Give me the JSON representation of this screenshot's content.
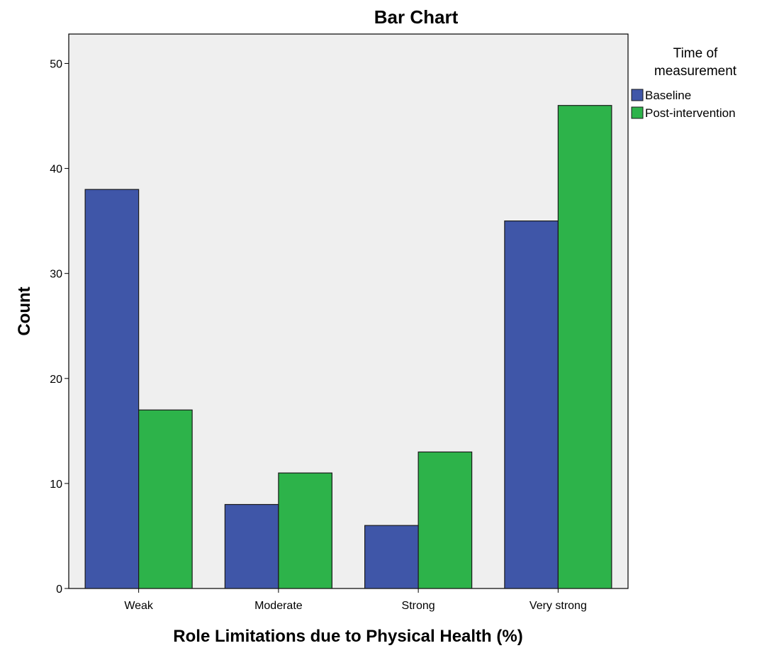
{
  "chart_data": {
    "type": "bar",
    "title": "Bar Chart",
    "xlabel": "Role Limitations due to Physical Health (%)",
    "ylabel": "Count",
    "categories": [
      "Weak",
      "Moderate",
      "Strong",
      "Very strong"
    ],
    "series": [
      {
        "name": "Baseline",
        "values": [
          38,
          8,
          6,
          35
        ],
        "color": "#3f56a8"
      },
      {
        "name": "Post-intervention",
        "values": [
          17,
          11,
          13,
          46
        ],
        "color": "#2db34a"
      }
    ],
    "ylim": [
      0,
      52.8
    ],
    "yticks": [
      "0",
      "10",
      "20",
      "30",
      "40",
      "50"
    ],
    "legend": {
      "title_line1": "Time of",
      "title_line2": "measurement",
      "placement": "right"
    },
    "plot_background": "#efefef",
    "grid": false
  }
}
